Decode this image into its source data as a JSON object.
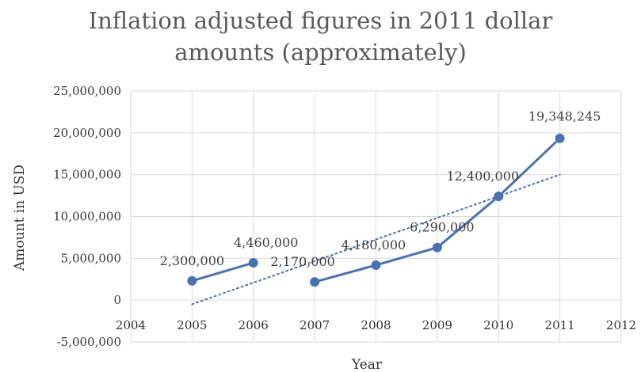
{
  "chart_data": {
    "type": "scatter",
    "title_lines": [
      "Inflation adjusted figures in 2011 dollar",
      "amounts (approximately)"
    ],
    "xlabel": "Year",
    "ylabel": "Amount in USD",
    "xlim": [
      2004,
      2012
    ],
    "ylim": [
      -5000000,
      25000000
    ],
    "x_ticks": [
      "2004",
      "2005",
      "2006",
      "2007",
      "2008",
      "2009",
      "2010",
      "2011",
      "2012"
    ],
    "y_ticks": [
      "-5,000,000",
      "0",
      "5,000,000",
      "10,000,000",
      "15,000,000",
      "20,000,000",
      "25,000,000"
    ],
    "grid": true,
    "legend": "none",
    "series": [
      {
        "segments": [
          [
            {
              "x": 2005,
              "y": 2300000,
              "label": "2,300,000"
            },
            {
              "x": 2006,
              "y": 4460000,
              "label": "4,460,000"
            }
          ],
          [
            {
              "x": 2007,
              "y": 2170000,
              "label": "2,170,000"
            },
            {
              "x": 2008,
              "y": 4180000,
              "label": "4,180,000"
            },
            {
              "x": 2009,
              "y": 6290000,
              "label": "6,290,000"
            },
            {
              "x": 2010,
              "y": 12400000,
              "label": "12,400,000"
            },
            {
              "x": 2011,
              "y": 19348245,
              "label": "19,348,245"
            }
          ]
        ],
        "color": "#4a72b0"
      }
    ],
    "trendline": {
      "style": "dotted",
      "color": "#4a72b0",
      "from": {
        "x": 2005,
        "y": -500000
      },
      "to": {
        "x": 2011,
        "y": 15000000
      }
    }
  }
}
